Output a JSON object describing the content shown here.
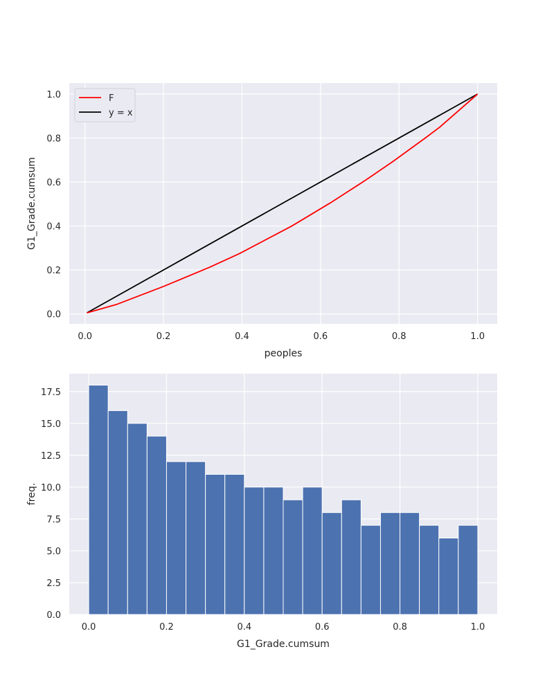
{
  "chart_data": [
    {
      "type": "line",
      "xlabel": "peoples",
      "ylabel": "G1_Grade.cumsum",
      "xlim": [
        -0.04,
        1.05
      ],
      "ylim": [
        -0.045,
        1.05
      ],
      "xticks": [
        "0.0",
        "0.2",
        "0.4",
        "0.6",
        "0.8",
        "1.0"
      ],
      "yticks": [
        "0.0",
        "0.2",
        "0.4",
        "0.6",
        "0.8",
        "1.0"
      ],
      "grid": true,
      "legend_placement": "upper-left",
      "series": [
        {
          "name": "F",
          "color": "#ff0000",
          "x": [
            0.005,
            0.08,
            0.2,
            0.317,
            0.394,
            0.527,
            0.625,
            0.712,
            0.785,
            0.869,
            0.904,
            1.0
          ],
          "y": [
            0.005,
            0.043,
            0.125,
            0.212,
            0.275,
            0.4,
            0.505,
            0.605,
            0.694,
            0.803,
            0.85,
            1.0
          ]
        },
        {
          "name": "y = x",
          "color": "#000000",
          "x": [
            0.005,
            1.0
          ],
          "y": [
            0.005,
            1.0
          ]
        }
      ]
    },
    {
      "type": "bar",
      "xlabel": "G1_Grade.cumsum",
      "ylabel": "freq.",
      "xlim": [
        -0.05,
        1.05
      ],
      "ylim": [
        0,
        18.9
      ],
      "xticks": [
        "0.0",
        "0.2",
        "0.4",
        "0.6",
        "0.8",
        "1.0"
      ],
      "yticks": [
        "0.0",
        "2.5",
        "5.0",
        "7.5",
        "10.0",
        "12.5",
        "15.0",
        "17.5"
      ],
      "grid": true,
      "color": "#4c72b0",
      "bin_edges": [
        0,
        0.05,
        0.1,
        0.15,
        0.2,
        0.25,
        0.3,
        0.35,
        0.4,
        0.45,
        0.5,
        0.55,
        0.6,
        0.65,
        0.7,
        0.75,
        0.8,
        0.85,
        0.9,
        0.95,
        1.0
      ],
      "values": [
        18,
        16,
        15,
        14,
        12,
        12,
        11,
        11,
        10,
        10,
        9,
        10,
        8,
        9,
        7,
        8,
        8,
        7,
        6,
        7
      ]
    }
  ]
}
